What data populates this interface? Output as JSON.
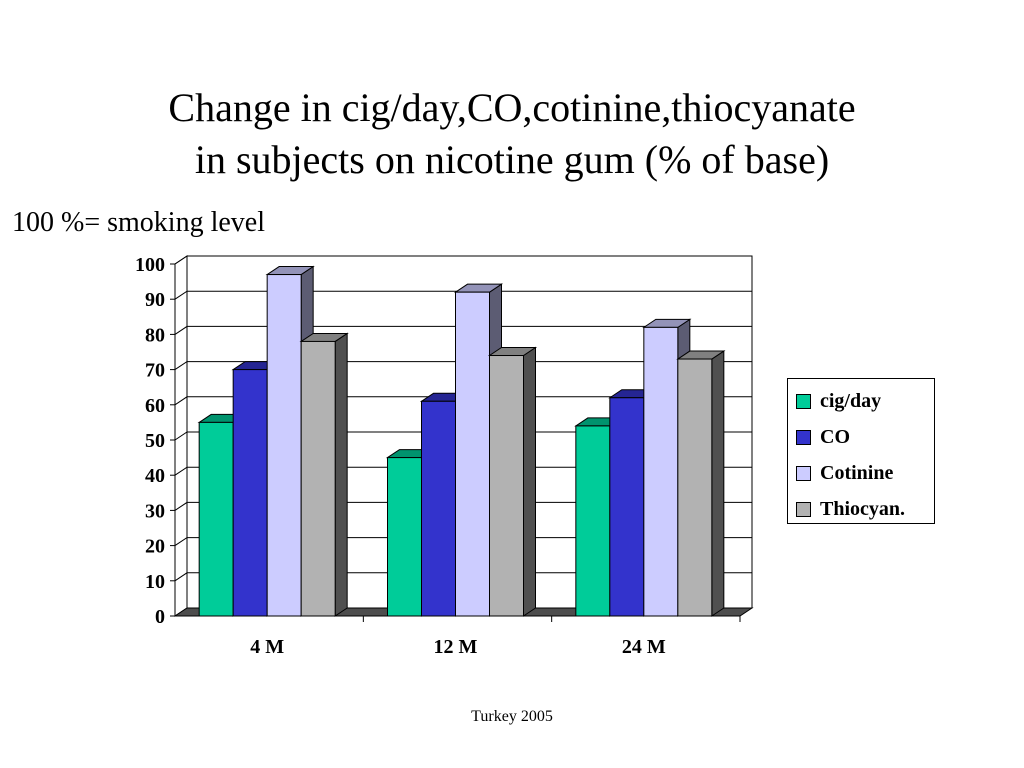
{
  "title": {
    "line1": "Change in cig/day,CO,cotinine,thiocyanate",
    "line2": "in subjects on nicotine gum (% of base)"
  },
  "note": "100 %= smoking level",
  "footer": "Turkey 2005",
  "chart_data": {
    "type": "bar",
    "style": "3d-clustered",
    "categories": [
      "4 M",
      "12 M",
      "24 M"
    ],
    "series": [
      {
        "name": "cig/day",
        "values": [
          55,
          45,
          54
        ],
        "color": "#00cc99"
      },
      {
        "name": "CO",
        "values": [
          70,
          61,
          62
        ],
        "color": "#3333cc"
      },
      {
        "name": "Cotinine",
        "values": [
          97,
          92,
          82
        ],
        "color": "#ccccff"
      },
      {
        "name": "Thiocyan.",
        "values": [
          78,
          74,
          73
        ],
        "color": "#b2b2b2"
      }
    ],
    "y_ticks": [
      "0",
      "10",
      "20",
      "30",
      "40",
      "50",
      "60",
      "70",
      "80",
      "90",
      "100"
    ],
    "ylim": [
      0,
      100
    ],
    "grid": true,
    "legend_position": "right"
  }
}
